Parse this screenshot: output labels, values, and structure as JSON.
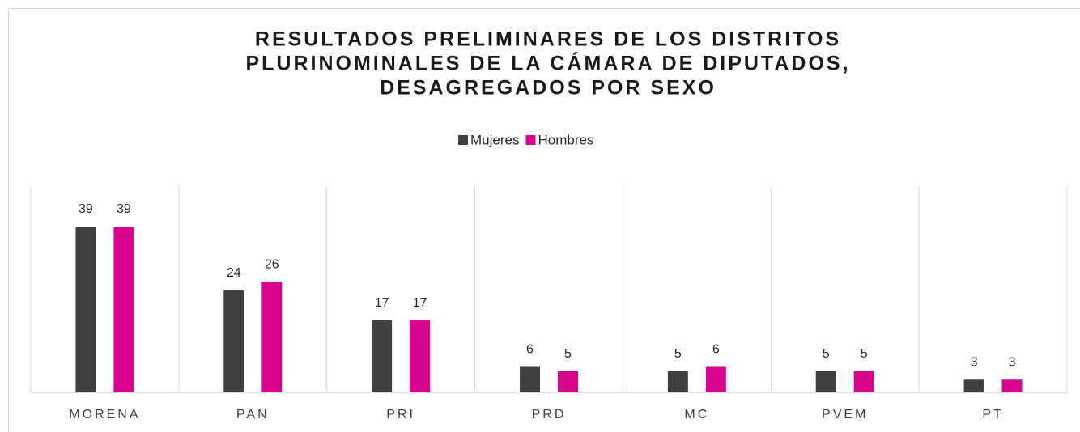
{
  "chart_data": {
    "type": "bar",
    "title": [
      "RESULTADOS PRELIMINARES DE LOS DISTRITOS",
      "PLURINOMINALES DE LA CÁMARA DE DIPUTADOS,",
      "DESAGREGADOS POR SEXO"
    ],
    "categories": [
      "MORENA",
      "PAN",
      "PRI",
      "PRD",
      "MC",
      "PVEM",
      "PT"
    ],
    "series": [
      {
        "name": "Mujeres",
        "color": "#404040",
        "values": [
          39,
          24,
          17,
          6,
          5,
          5,
          3
        ]
      },
      {
        "name": "Hombres",
        "color": "#d9048c",
        "values": [
          39,
          26,
          17,
          5,
          6,
          5,
          3
        ]
      }
    ],
    "legend": "top"
  }
}
